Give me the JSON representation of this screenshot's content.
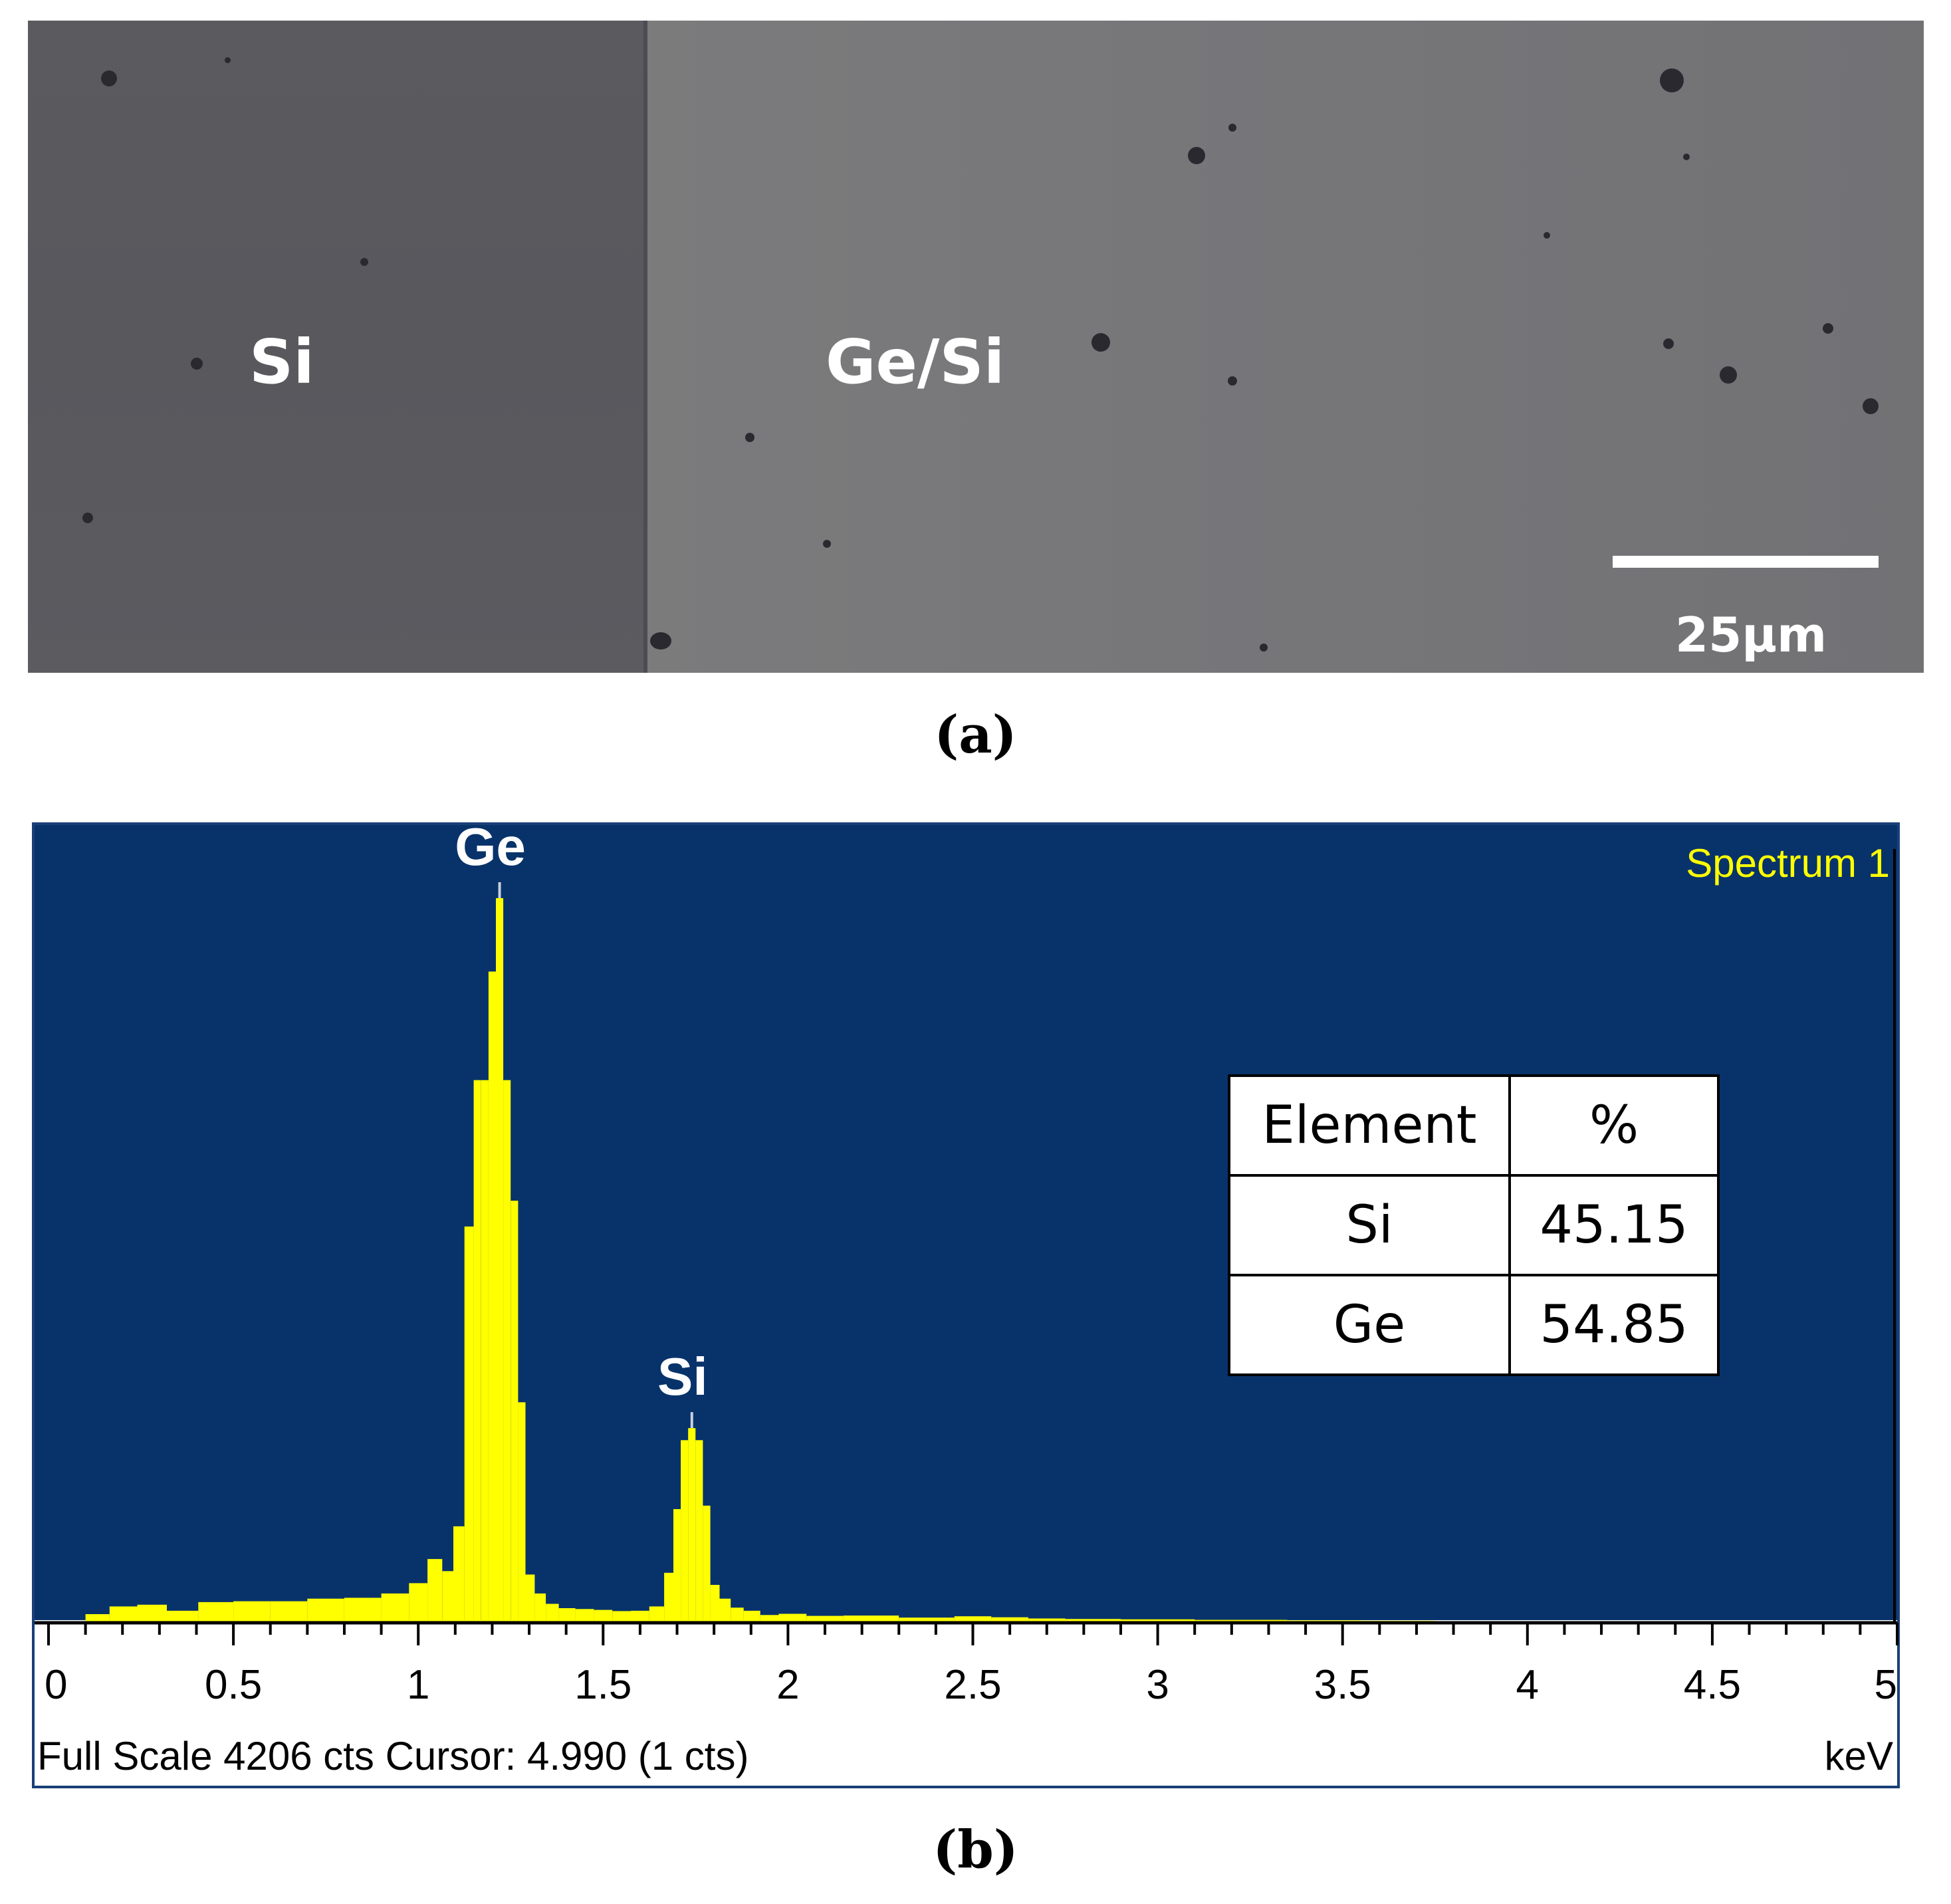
{
  "panel_a": {
    "region_left_label": "Si",
    "region_right_label": "Ge/Si",
    "scale_bar_label": "25μm",
    "caption": "(a)"
  },
  "panel_b": {
    "caption": "(b)",
    "spectrum_name": "Spectrum 1",
    "status_text": "Full Scale 4206 cts Cursor: 4.990  (1 cts)",
    "x_unit": "keV",
    "colors": {
      "background": "#08336a",
      "spectrum": "#ffff00",
      "text": "#ffffff",
      "spectrum_name": "#ffff00"
    },
    "table": {
      "headers": [
        "Element",
        "%"
      ],
      "rows": [
        {
          "element": "Si",
          "percent": "45.15"
        },
        {
          "element": "Ge",
          "percent": "54.85"
        }
      ]
    }
  },
  "chart_data": {
    "type": "area",
    "title": "Spectrum 1",
    "xlabel": "keV",
    "ylabel": "",
    "xlim": [
      0,
      5
    ],
    "ylim": [
      0,
      4206
    ],
    "x_ticks": [
      "0",
      "0.5",
      "1",
      "1.5",
      "2",
      "2.5",
      "3",
      "3.5",
      "4",
      "4.5",
      "5"
    ],
    "peak_labels": [
      {
        "label": "Ge",
        "x": 1.22
      },
      {
        "label": "Si",
        "x": 1.74
      }
    ],
    "series": [
      {
        "x": [
          0.13,
          0.2,
          0.28,
          0.36,
          0.45,
          0.55,
          0.65,
          0.75,
          0.85,
          0.95,
          1.0,
          1.05,
          1.08,
          1.11,
          1.14,
          1.16,
          1.18,
          1.2,
          1.22,
          1.24,
          1.26,
          1.28,
          1.3,
          1.33,
          1.36,
          1.4,
          1.45,
          1.5,
          1.55,
          1.6,
          1.65,
          1.68,
          1.7,
          1.72,
          1.74,
          1.76,
          1.78,
          1.8,
          1.83,
          1.86,
          1.9,
          1.95,
          2.0,
          2.1,
          2.2,
          2.4,
          2.5,
          2.6,
          2.7,
          2.8,
          3.0,
          3.2,
          3.5,
          3.6,
          3.9
        ],
        "y": [
          50,
          95,
          105,
          70,
          120,
          125,
          125,
          140,
          145,
          170,
          230,
          370,
          300,
          560,
          2300,
          3150,
          3150,
          3780,
          4206,
          3150,
          2450,
          1280,
          280,
          170,
          110,
          85,
          80,
          75,
          68,
          70,
          95,
          290,
          660,
          1060,
          1130,
          1060,
          680,
          220,
          140,
          88,
          70,
          45,
          52,
          40,
          42,
          30,
          38,
          32,
          25,
          22,
          20,
          17,
          14,
          12,
          8
        ]
      }
    ]
  }
}
